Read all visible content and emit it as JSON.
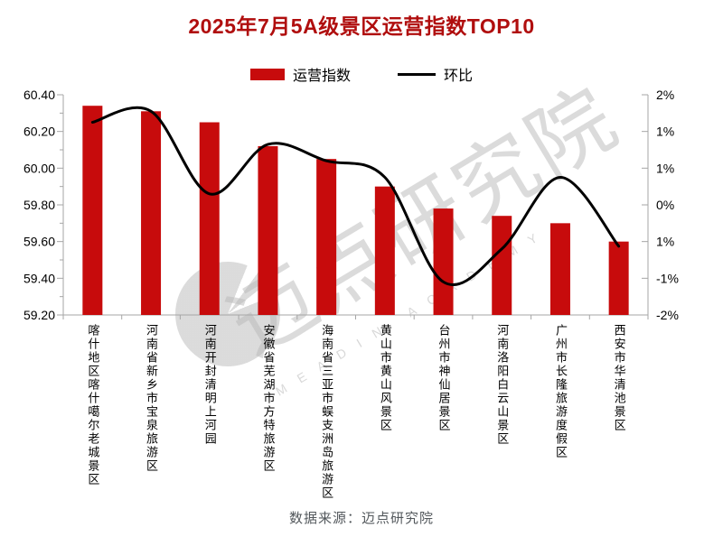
{
  "title": "2025年7月5A级景区运营指数TOP10",
  "legend": {
    "bar_label": "运营指数",
    "line_label": "环比"
  },
  "source": "数据来源：迈点研究院",
  "watermark": {
    "text": "迈点研究院",
    "subtext": "MEADIN ACADEMY"
  },
  "colors": {
    "bar": "#C70B0C",
    "line": "#000000",
    "title": "#B00E0E",
    "axis": "#A6A6A6",
    "tick_label": "#000000",
    "source_text": "#53585C"
  },
  "chart_data": {
    "type": "combo",
    "title": "2025年7月5A级景区运营指数TOP10",
    "categories": [
      "喀什地区喀什噶尔老城景区",
      "河南省新乡市宝泉旅游区",
      "河南开封清明上河园",
      "安徽省芜湖市方特旅游区",
      "海南省三亚市蜈支洲岛旅游区",
      "黄山市黄山风景区",
      "台州市神仙居景区",
      "河南洛阳白云山景区",
      "广州市长隆旅游度假区",
      "西安市华清池景区"
    ],
    "series": [
      {
        "name": "运营指数",
        "type": "bar",
        "axis": "left",
        "values": [
          60.34,
          60.31,
          60.25,
          60.12,
          60.05,
          59.9,
          59.78,
          59.74,
          59.7,
          59.6
        ]
      },
      {
        "name": "环比",
        "type": "line",
        "axis": "right",
        "unit": "%",
        "values": [
          1.5,
          1.7,
          0.2,
          1.1,
          0.8,
          0.5,
          -1.4,
          -0.8,
          0.5,
          -0.75
        ]
      }
    ],
    "left_axis": {
      "min": 59.2,
      "max": 60.4,
      "minor_step": 0.1,
      "tick_labels": [
        "60.40",
        "60.20",
        "60.00",
        "59.80",
        "59.60",
        "59.40",
        "59.20"
      ]
    },
    "right_axis": {
      "min": -2,
      "max": 2,
      "tick_labels": [
        "2%",
        "1%",
        "1%",
        "0%",
        "1%",
        "-1%",
        "-2%"
      ]
    },
    "grid": false,
    "legend_position": "top"
  }
}
